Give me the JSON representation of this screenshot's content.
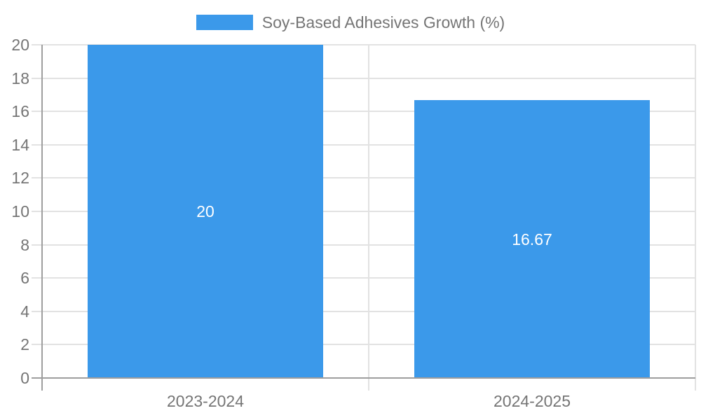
{
  "legend": {
    "label": "Soy-Based Adhesives Growth (%)",
    "position": "top-center"
  },
  "chart_data": {
    "type": "bar",
    "title": "",
    "xlabel": "",
    "ylabel": "",
    "categories": [
      "2023-2024",
      "2024-2025"
    ],
    "series": [
      {
        "name": "Soy-Based Adhesives Growth (%)",
        "values": [
          20,
          16.67
        ]
      }
    ],
    "bar_value_labels": [
      "20",
      "16.67"
    ],
    "ylim": [
      0,
      20
    ],
    "yticks": [
      0,
      2,
      4,
      6,
      8,
      10,
      12,
      14,
      16,
      18,
      20
    ],
    "grid": true,
    "legend_position": "top-center",
    "colors": {
      "bar": "#3b99ea",
      "grid": "#e2e2e2",
      "axis": "#9e9e9e",
      "tick_text": "#757575",
      "bar_label_text": "#ffffff",
      "background": "#ffffff"
    }
  }
}
